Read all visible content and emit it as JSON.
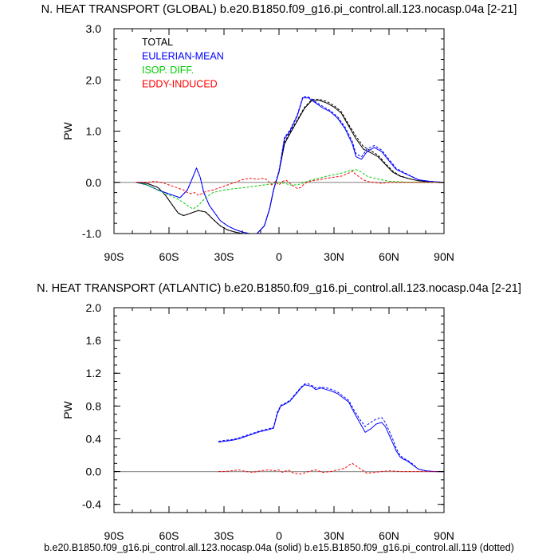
{
  "footer": "b.e20.B1850.f09_g16.pi_control.all.123.nocasp.04a (solid) b.e15.B1850.f09_g16.pi_control.all.119 (dotted)",
  "colors": {
    "total": "#000000",
    "eulerian": "#0000ff",
    "isop": "#00cc00",
    "eddy": "#ff0000",
    "zero": "#999999"
  },
  "chart_data": [
    {
      "type": "line",
      "title": "N. HEAT TRANSPORT (GLOBAL) b.e20.B1850.f09_g16.pi_control.all.123.nocasp.04a [2-21]",
      "ylabel": "PW",
      "xlim": [
        -90,
        90
      ],
      "ylim": [
        -1.0,
        3.0
      ],
      "yticks": [
        -1.0,
        0.0,
        1.0,
        2.0,
        3.0
      ],
      "ytick_labels": [
        "-1.0",
        "0.0",
        "1.0",
        "2.0",
        "3.0"
      ],
      "xticks": [
        -90,
        -60,
        -30,
        0,
        30,
        60,
        90
      ],
      "xtick_labels": [
        "90S",
        "60S",
        "30S",
        "0",
        "30N",
        "60N",
        "90N"
      ],
      "legend": [
        "TOTAL",
        "EULERIAN-MEAN",
        "ISOP. DIFF.",
        "EDDY-INDUCED"
      ],
      "series": [
        {
          "name": "TOTAL",
          "color": "#000000",
          "x": [
            -78,
            -72,
            -66,
            -62,
            -58,
            -55,
            -52,
            -48,
            -44,
            -40,
            -36,
            -32,
            -28,
            -24,
            -20,
            -16,
            -12,
            -8,
            -5,
            -3,
            0,
            3,
            6,
            10,
            14,
            18,
            22,
            26,
            30,
            34,
            38,
            42,
            46,
            50,
            54,
            58,
            62,
            66,
            70,
            76,
            82,
            90
          ],
          "y": [
            0.0,
            -0.02,
            -0.1,
            -0.25,
            -0.45,
            -0.6,
            -0.65,
            -0.6,
            -0.55,
            -0.58,
            -0.72,
            -0.85,
            -0.93,
            -0.97,
            -1.0,
            -1.02,
            -1.0,
            -0.85,
            -0.5,
            -0.15,
            0.2,
            0.75,
            0.95,
            1.2,
            1.45,
            1.6,
            1.6,
            1.55,
            1.47,
            1.35,
            1.1,
            0.85,
            0.65,
            0.58,
            0.5,
            0.35,
            0.2,
            0.12,
            0.08,
            0.03,
            0.01,
            0.0
          ]
        },
        {
          "name": "TOTAL (dotted)",
          "color": "#000000",
          "dashed": true,
          "x": [
            -78,
            -72,
            -66,
            -62,
            -58,
            -55,
            -52,
            -48,
            -44,
            -40,
            -36,
            -32,
            -28,
            -24,
            -20,
            -16,
            -12,
            -8,
            -5,
            -3,
            0,
            3,
            6,
            10,
            14,
            18,
            22,
            26,
            30,
            34,
            38,
            42,
            46,
            50,
            54,
            58,
            62,
            66,
            70,
            76,
            82,
            90
          ],
          "y": [
            0.0,
            -0.02,
            -0.1,
            -0.25,
            -0.45,
            -0.6,
            -0.65,
            -0.6,
            -0.55,
            -0.58,
            -0.72,
            -0.85,
            -0.93,
            -0.97,
            -1.0,
            -1.02,
            -1.0,
            -0.85,
            -0.5,
            -0.15,
            0.22,
            0.78,
            0.98,
            1.22,
            1.47,
            1.62,
            1.62,
            1.58,
            1.5,
            1.38,
            1.13,
            0.9,
            0.7,
            0.62,
            0.53,
            0.37,
            0.22,
            0.13,
            0.08,
            0.03,
            0.01,
            0.0
          ]
        },
        {
          "name": "EULERIAN-MEAN",
          "color": "#0000ff",
          "x": [
            -78,
            -72,
            -66,
            -62,
            -58,
            -54,
            -50,
            -47,
            -45,
            -43,
            -41,
            -38,
            -35,
            -32,
            -28,
            -24,
            -20,
            -16,
            -12,
            -8,
            -5,
            -3,
            0,
            3,
            6,
            10,
            13,
            16,
            20,
            24,
            28,
            32,
            36,
            40,
            42,
            45,
            48,
            52,
            56,
            60,
            64,
            70,
            76,
            82,
            90
          ],
          "y": [
            0.0,
            -0.05,
            -0.15,
            -0.2,
            -0.25,
            -0.3,
            -0.15,
            0.1,
            0.28,
            0.1,
            -0.2,
            -0.45,
            -0.6,
            -0.75,
            -0.85,
            -0.92,
            -0.97,
            -1.0,
            -1.0,
            -0.85,
            -0.5,
            -0.15,
            0.2,
            0.85,
            1.0,
            1.3,
            1.65,
            1.65,
            1.55,
            1.45,
            1.38,
            1.25,
            1.05,
            0.75,
            0.5,
            0.45,
            0.6,
            0.68,
            0.6,
            0.42,
            0.25,
            0.15,
            0.05,
            0.02,
            0.0
          ]
        },
        {
          "name": "EULERIAN-MEAN (dotted)",
          "color": "#0000ff",
          "dashed": true,
          "x": [
            -78,
            -72,
            -66,
            -62,
            -58,
            -54,
            -50,
            -47,
            -45,
            -43,
            -41,
            -38,
            -35,
            -32,
            -28,
            -24,
            -20,
            -16,
            -12,
            -8,
            -5,
            -3,
            0,
            3,
            6,
            10,
            13,
            16,
            20,
            24,
            28,
            32,
            36,
            40,
            42,
            45,
            48,
            52,
            56,
            60,
            64,
            70,
            76,
            82,
            90
          ],
          "y": [
            0.0,
            -0.05,
            -0.15,
            -0.2,
            -0.25,
            -0.3,
            -0.15,
            0.1,
            0.28,
            0.1,
            -0.2,
            -0.45,
            -0.6,
            -0.75,
            -0.85,
            -0.92,
            -0.97,
            -1.0,
            -1.0,
            -0.85,
            -0.5,
            -0.15,
            0.22,
            0.88,
            1.02,
            1.32,
            1.67,
            1.67,
            1.57,
            1.48,
            1.4,
            1.28,
            1.08,
            0.8,
            0.56,
            0.5,
            0.65,
            0.72,
            0.63,
            0.45,
            0.27,
            0.16,
            0.05,
            0.02,
            0.0
          ]
        },
        {
          "name": "ISOP. DIFF.",
          "color": "#00cc00",
          "dashed": true,
          "x": [
            -78,
            -72,
            -66,
            -62,
            -58,
            -55,
            -52,
            -50,
            -47,
            -44,
            -40,
            -36,
            -30,
            -24,
            -18,
            -12,
            -6,
            -3,
            0,
            3,
            6,
            10,
            14,
            18,
            22,
            26,
            30,
            34,
            38,
            42,
            45,
            48,
            52,
            56,
            60,
            66,
            72,
            80,
            90
          ],
          "y": [
            0.0,
            -0.05,
            -0.15,
            -0.22,
            -0.28,
            -0.33,
            -0.4,
            -0.45,
            -0.52,
            -0.45,
            -0.3,
            -0.2,
            -0.15,
            -0.12,
            -0.1,
            -0.07,
            -0.04,
            -0.02,
            0.0,
            -0.02,
            -0.05,
            -0.05,
            0.0,
            0.05,
            0.08,
            0.12,
            0.15,
            0.18,
            0.22,
            0.25,
            0.2,
            0.12,
            0.08,
            0.05,
            0.02,
            0.01,
            0.0,
            0.0,
            0.0
          ]
        },
        {
          "name": "EDDY-INDUCED",
          "color": "#ff0000",
          "dashed": true,
          "x": [
            -78,
            -72,
            -68,
            -64,
            -60,
            -56,
            -52,
            -50,
            -48,
            -46,
            -44,
            -42,
            -40,
            -36,
            -32,
            -28,
            -24,
            -20,
            -16,
            -12,
            -8,
            -6,
            -4,
            -2,
            0,
            2,
            4,
            6,
            8,
            10,
            12,
            14,
            18,
            22,
            26,
            30,
            34,
            38,
            40,
            42,
            44,
            46,
            48,
            52,
            56,
            60,
            66,
            72,
            80,
            90
          ],
          "y": [
            0.0,
            0.0,
            0.02,
            0.0,
            -0.05,
            -0.1,
            -0.15,
            -0.2,
            -0.22,
            -0.2,
            -0.25,
            -0.22,
            -0.18,
            -0.15,
            -0.1,
            -0.05,
            0.0,
            0.05,
            0.08,
            0.06,
            0.08,
            0.03,
            -0.05,
            0.02,
            -0.05,
            0.02,
            0.04,
            -0.02,
            -0.08,
            -0.12,
            -0.1,
            -0.02,
            0.03,
            0.05,
            0.08,
            0.1,
            0.12,
            0.18,
            0.22,
            0.15,
            0.1,
            0.05,
            0.02,
            0.0,
            -0.02,
            0.0,
            0.0,
            0.0,
            0.0,
            0.0
          ]
        }
      ]
    },
    {
      "type": "line",
      "title": "N. HEAT TRANSPORT (ATLANTIC) b.e20.B1850.f09_g16.pi_control.all.123.nocasp.04a [2-21]",
      "ylabel": "PW",
      "xlim": [
        -90,
        90
      ],
      "ylim": [
        -0.5,
        2.0
      ],
      "yticks": [
        -0.4,
        0.0,
        0.4,
        0.8,
        1.2,
        1.6,
        2.0
      ],
      "ytick_labels": [
        "-0.4",
        "0.0",
        "0.4",
        "0.8",
        "1.2",
        "1.6",
        "2.0"
      ],
      "xticks": [
        -90,
        -60,
        -30,
        0,
        30,
        60,
        90
      ],
      "xtick_labels": [
        "90S",
        "60S",
        "30S",
        "0",
        "30N",
        "60N",
        "90N"
      ],
      "series": [
        {
          "name": "EULERIAN-MEAN",
          "color": "#0000ff",
          "x": [
            -33,
            -30,
            -26,
            -22,
            -18,
            -14,
            -10,
            -6,
            -3,
            -1,
            1,
            3,
            6,
            9,
            12,
            14,
            16,
            18,
            20,
            23,
            26,
            29,
            32,
            35,
            38,
            41,
            44,
            47,
            50,
            53,
            56,
            58,
            60,
            62,
            64,
            66,
            68,
            70,
            73,
            76,
            80,
            85,
            90
          ],
          "y": [
            0.36,
            0.37,
            0.38,
            0.4,
            0.43,
            0.46,
            0.49,
            0.51,
            0.53,
            0.7,
            0.8,
            0.82,
            0.86,
            0.94,
            1.02,
            1.06,
            1.05,
            1.04,
            1.0,
            1.02,
            1.0,
            0.98,
            0.95,
            0.9,
            0.85,
            0.72,
            0.6,
            0.48,
            0.52,
            0.58,
            0.6,
            0.55,
            0.45,
            0.35,
            0.25,
            0.18,
            0.15,
            0.13,
            0.08,
            0.03,
            0.01,
            0.0,
            0.0
          ]
        },
        {
          "name": "EULERIAN-MEAN (dotted)",
          "color": "#0000ff",
          "dashed": true,
          "x": [
            -33,
            -30,
            -26,
            -22,
            -18,
            -14,
            -10,
            -6,
            -3,
            -1,
            1,
            3,
            6,
            9,
            12,
            14,
            16,
            18,
            20,
            23,
            26,
            29,
            32,
            35,
            38,
            41,
            44,
            47,
            50,
            53,
            56,
            58,
            60,
            62,
            64,
            66,
            68,
            70,
            73,
            76,
            80,
            85,
            90
          ],
          "y": [
            0.37,
            0.38,
            0.39,
            0.41,
            0.44,
            0.47,
            0.5,
            0.52,
            0.54,
            0.72,
            0.81,
            0.83,
            0.87,
            0.95,
            1.03,
            1.07,
            1.07,
            1.05,
            1.02,
            1.03,
            1.02,
            1.0,
            0.97,
            0.92,
            0.87,
            0.75,
            0.64,
            0.55,
            0.6,
            0.64,
            0.66,
            0.6,
            0.5,
            0.4,
            0.28,
            0.2,
            0.16,
            0.14,
            0.09,
            0.03,
            0.01,
            0.0,
            0.0
          ]
        },
        {
          "name": "EDDY-INDUCED",
          "color": "#ff0000",
          "dashed": true,
          "x": [
            -33,
            -30,
            -26,
            -22,
            -18,
            -14,
            -10,
            -6,
            -2,
            0,
            2,
            5,
            8,
            12,
            16,
            20,
            24,
            28,
            32,
            36,
            38,
            40,
            42,
            44,
            46,
            48,
            52,
            56,
            60,
            66,
            72,
            80,
            90
          ],
          "y": [
            0.0,
            0.0,
            0.01,
            0.02,
            0.0,
            -0.01,
            0.01,
            0.02,
            0.01,
            0.02,
            -0.01,
            0.02,
            -0.02,
            -0.03,
            0.0,
            0.02,
            -0.01,
            0.0,
            0.02,
            0.04,
            0.08,
            0.1,
            0.07,
            0.04,
            0.01,
            -0.02,
            -0.01,
            0.0,
            0.01,
            0.0,
            0.0,
            0.0,
            0.0
          ]
        }
      ]
    }
  ]
}
